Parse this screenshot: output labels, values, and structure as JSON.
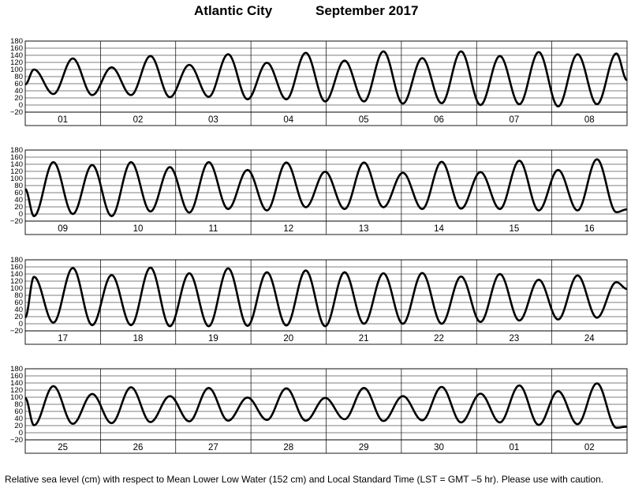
{
  "header": {
    "location": "Atlantic City",
    "period": "September   2017"
  },
  "footnote": "Relative sea level (cm) with respect to Mean Lower Low Water (152 cm) and Local Standard Time (LST = GMT –5 hr). Please use with caution.",
  "chart_data": {
    "type": "line",
    "title": "Atlantic City          September   2017",
    "ylabel": "",
    "xlabel": "",
    "ylim": [
      -20,
      180
    ],
    "yticks": [
      "−20",
      "0",
      "20",
      "40",
      "60",
      "80",
      "100",
      "120",
      "140",
      "160",
      "180"
    ],
    "grid": true,
    "line_color": "#000000",
    "panels": [
      {
        "days": [
          "01",
          "02",
          "03",
          "04",
          "05",
          "06",
          "07",
          "08"
        ],
        "start_value": 58,
        "extrema": [
          100,
          31,
          131,
          28,
          106,
          28,
          138,
          22,
          113,
          23,
          143,
          16,
          119,
          16,
          147,
          10,
          125,
          10,
          151,
          4,
          132,
          5,
          151,
          0,
          138,
          2,
          149,
          -4,
          143,
          2,
          145
        ],
        "end_value": 70
      },
      {
        "days": [
          "09",
          "10",
          "11",
          "12",
          "13",
          "14",
          "15",
          "16"
        ],
        "start_value": 70,
        "extrema": [
          -6,
          146,
          0,
          138,
          -6,
          146,
          7,
          132,
          4,
          146,
          14,
          124,
          10,
          145,
          19,
          119,
          14,
          145,
          19,
          116,
          14,
          147,
          15,
          118,
          14,
          150,
          10,
          124,
          10,
          154,
          5
        ],
        "end_value": 13
      },
      {
        "days": [
          "17",
          "18",
          "19",
          "20",
          "21",
          "22",
          "23",
          "24"
        ],
        "start_value": 18,
        "extrema": [
          132,
          3,
          157,
          -4,
          137,
          -4,
          158,
          -7,
          142,
          -7,
          156,
          -6,
          145,
          -5,
          150,
          -7,
          145,
          0,
          142,
          0,
          143,
          0,
          133,
          5,
          140,
          9,
          124,
          12,
          136,
          17,
          117
        ],
        "end_value": 98
      },
      {
        "days": [
          "25",
          "26",
          "27",
          "28",
          "29",
          "30",
          "01",
          "02"
        ],
        "start_value": 98,
        "extrema": [
          21,
          131,
          25,
          109,
          27,
          128,
          30,
          103,
          32,
          126,
          34,
          99,
          36,
          125,
          34,
          98,
          38,
          126,
          33,
          103,
          35,
          129,
          29,
          110,
          29,
          133,
          22,
          117,
          24,
          139,
          14
        ],
        "end_value": 17
      }
    ]
  }
}
